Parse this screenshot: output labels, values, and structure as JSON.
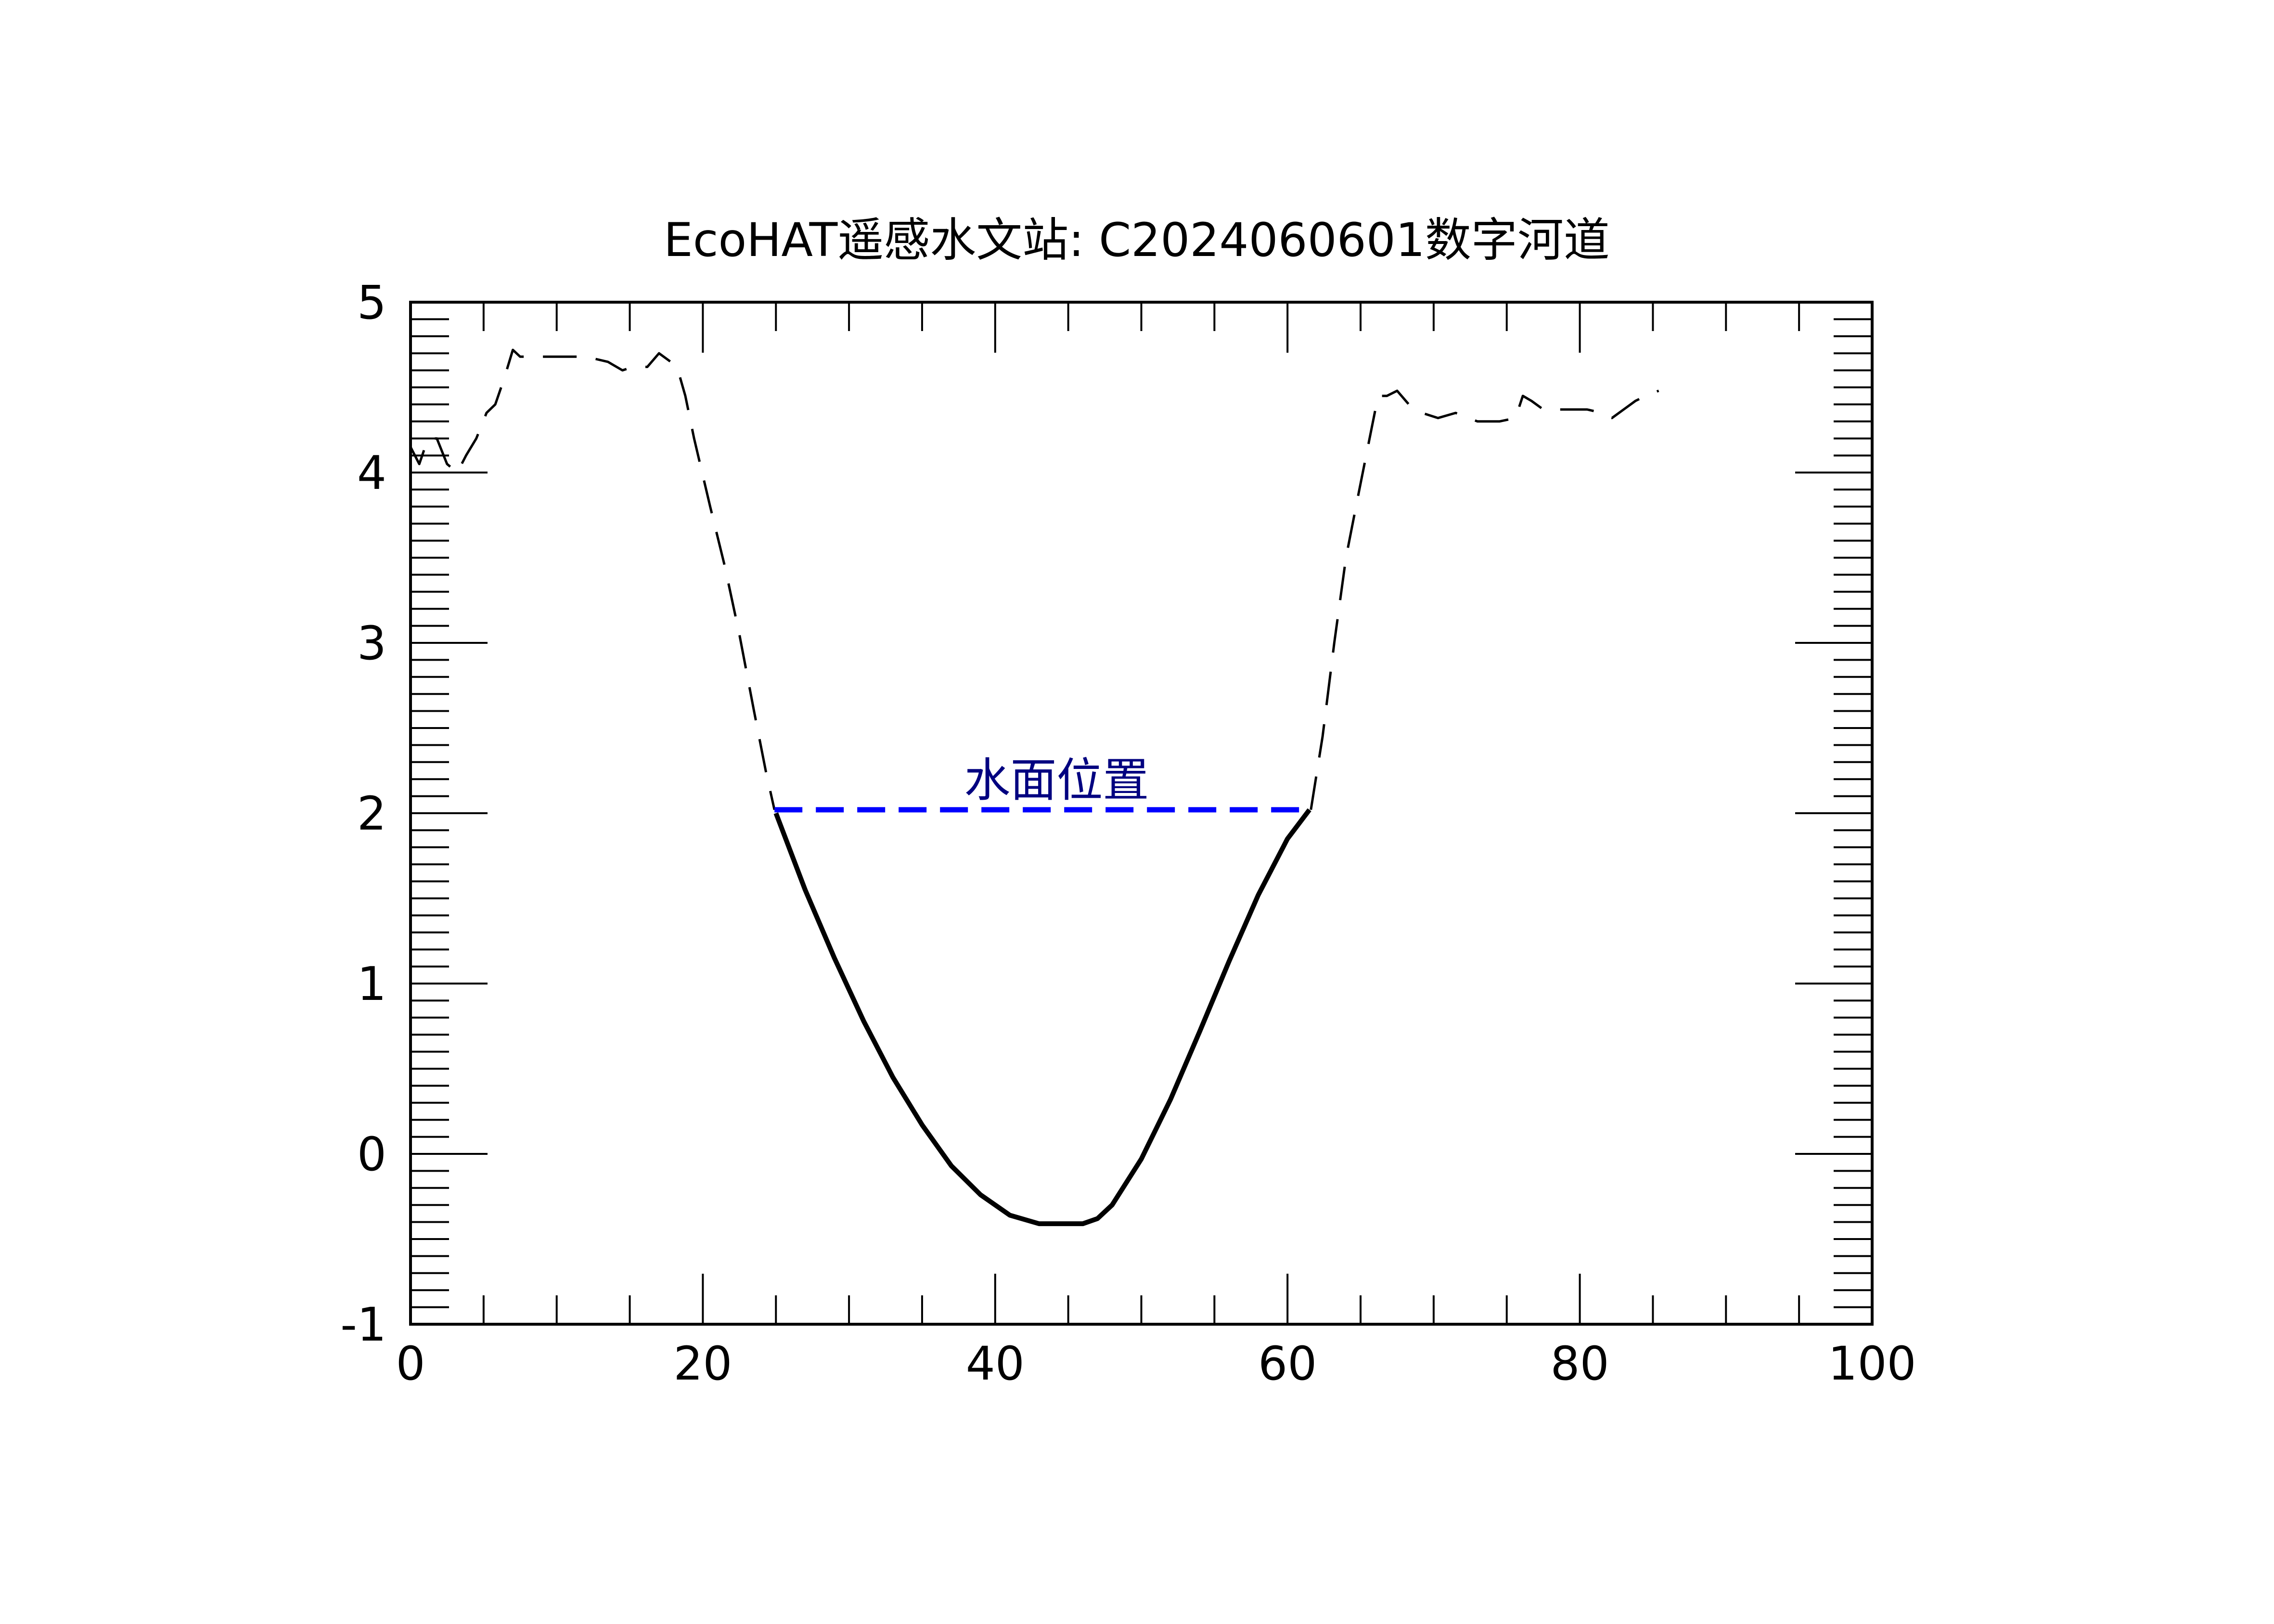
{
  "chart_data": {
    "type": "line",
    "title": "EcoHAT遥感水文站: C2024060601数字河道",
    "xlabel": "",
    "ylabel": "",
    "xlim": [
      0,
      100
    ],
    "ylim": [
      -1,
      5
    ],
    "x_major_ticks": [
      0,
      20,
      40,
      60,
      80,
      100
    ],
    "x_tick_labels": [
      "0",
      "20",
      "40",
      "60",
      "80",
      "100"
    ],
    "y_major_ticks": [
      -1,
      0,
      1,
      2,
      3,
      4,
      5
    ],
    "y_tick_labels": [
      "-1",
      "0",
      "1",
      "2",
      "3",
      "4",
      "5"
    ],
    "grid": false,
    "colors": {
      "terrain": "#000000",
      "water_line": "#0000ff",
      "annotation": "#000080"
    },
    "series": [
      {
        "style": "dashed",
        "x": [
          0,
          0.6,
          1.2,
          1.8,
          2.5,
          3.2,
          3.8,
          4.5,
          5.2,
          5.8,
          6.4,
          7.0,
          7.5,
          8.5,
          10,
          12,
          13.5,
          14.5,
          15.2,
          16.2,
          17.0,
          17.8,
          18.3,
          18.8,
          19.4,
          20.5,
          21.5,
          22.5,
          23.5,
          24.3,
          24.9
        ],
        "y": [
          4.15,
          4.05,
          4.2,
          4.2,
          4.05,
          4.0,
          4.1,
          4.2,
          4.35,
          4.4,
          4.55,
          4.72,
          4.68,
          4.68,
          4.68,
          4.68,
          4.65,
          4.6,
          4.62,
          4.62,
          4.7,
          4.65,
          4.6,
          4.45,
          4.2,
          3.8,
          3.45,
          3.05,
          2.6,
          2.25,
          2.02
        ]
      },
      {
        "style": "solid",
        "x": [
          25.0,
          27,
          29,
          31,
          33,
          35,
          37,
          39,
          41,
          43,
          44,
          45,
          46,
          47,
          48,
          50,
          52,
          54,
          56,
          58,
          60,
          61.5
        ],
        "y": [
          2.0,
          1.55,
          1.15,
          0.78,
          0.45,
          0.17,
          -0.07,
          -0.24,
          -0.36,
          -0.41,
          -0.41,
          -0.41,
          -0.41,
          -0.38,
          -0.3,
          -0.03,
          0.32,
          0.72,
          1.13,
          1.52,
          1.85,
          2.02
        ]
      },
      {
        "style": "dashed",
        "x": [
          61.6,
          62.4,
          63.2,
          64.0,
          64.8,
          65.5,
          66.2,
          66.8,
          67.5,
          68.3,
          69.2,
          70.3,
          71.5,
          73.0,
          74.5,
          75.6,
          76.1,
          76.7,
          77.5,
          79,
          80.5,
          81.5,
          82.2,
          83.0,
          83.8,
          84.5,
          85.4
        ],
        "y": [
          2.02,
          2.45,
          3.0,
          3.5,
          3.85,
          4.15,
          4.45,
          4.45,
          4.48,
          4.4,
          4.35,
          4.32,
          4.35,
          4.3,
          4.3,
          4.32,
          4.45,
          4.42,
          4.37,
          4.37,
          4.37,
          4.35,
          4.32,
          4.37,
          4.42,
          4.45,
          4.48
        ]
      },
      {
        "style": "dashed",
        "x": [
          24.9,
          61.6
        ],
        "y": [
          2.02,
          2.02
        ]
      }
    ],
    "annotations": [
      {
        "text": "水面位置",
        "x": 44.2,
        "y": 2.1
      }
    ]
  }
}
